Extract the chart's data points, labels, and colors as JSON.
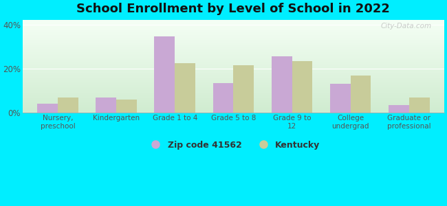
{
  "title": "School Enrollment by Level of School in 2022",
  "categories": [
    "Nursery,\npreschool",
    "Kindergarten",
    "Grade 1 to 4",
    "Grade 5 to 8",
    "Grade 9 to\n12",
    "College\nundergrad",
    "Graduate or\nprofessional"
  ],
  "zip_values": [
    4.0,
    7.0,
    34.5,
    13.5,
    25.5,
    13.0,
    3.5
  ],
  "ky_values": [
    7.0,
    6.0,
    22.5,
    21.5,
    23.5,
    17.0,
    7.0
  ],
  "zip_color": "#c9a8d4",
  "ky_color": "#c8cc9a",
  "background_outer": "#00eeff",
  "gradient_top": "#f5fff5",
  "gradient_bottom": "#d0ecd0",
  "ylim": [
    0,
    42
  ],
  "yticks": [
    0,
    20,
    40
  ],
  "ytick_labels": [
    "0%",
    "20%",
    "40%"
  ],
  "zip_label": "Zip code 41562",
  "ky_label": "Kentucky",
  "bar_width": 0.35,
  "title_fontsize": 13,
  "tick_fontsize": 7.5,
  "watermark": "City-Data.com"
}
